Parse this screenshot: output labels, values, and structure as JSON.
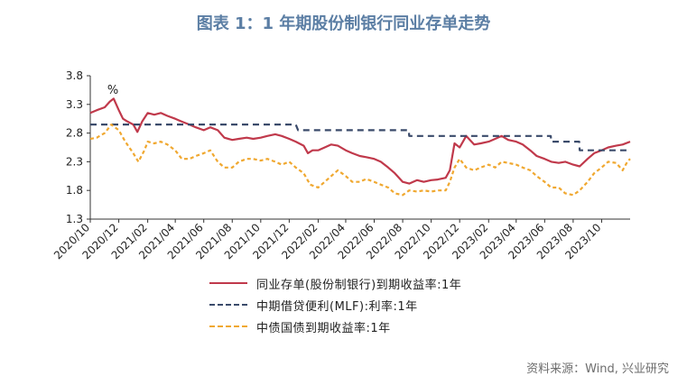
{
  "title": "图表 1：1 年期股份制银行同业存单走势",
  "source": "资料来源：Wind, 兴业研究",
  "colors": {
    "title": "#5b7ea4",
    "ncd": "#c0394b",
    "mlf": "#3b4b6b",
    "gov": "#f0a830"
  },
  "chart_data": {
    "type": "line",
    "unit_label": "%",
    "ylim": [
      1.3,
      3.8
    ],
    "yticks": [
      "3.8",
      "3.3",
      "2.8",
      "2.3",
      "1.8",
      "1.3"
    ],
    "xlim": [
      "2020-10",
      "2023-12"
    ],
    "xticks": [
      "2020/10",
      "2020/12",
      "2021/02",
      "2021/04",
      "2021/06",
      "2021/08",
      "2021/10",
      "2021/12",
      "2022/02",
      "2022/04",
      "2022/06",
      "2022/08",
      "2022/10",
      "2022/12",
      "2023/02",
      "2023/04",
      "2023/06",
      "2023/08",
      "2023/10"
    ],
    "grid": false,
    "legend_position": "bottom",
    "series": [
      {
        "name": "同业存单(股份制银行)到期收益率:1年",
        "color": "#c0394b",
        "style": "solid",
        "points": [
          [
            "2020-10-01",
            3.15
          ],
          [
            "2020-10-15",
            3.2
          ],
          [
            "2020-11-01",
            3.25
          ],
          [
            "2020-11-12",
            3.35
          ],
          [
            "2020-11-20",
            3.4
          ],
          [
            "2020-12-01",
            3.2
          ],
          [
            "2020-12-10",
            3.05
          ],
          [
            "2020-12-20",
            3.0
          ],
          [
            "2021-01-01",
            2.95
          ],
          [
            "2021-01-10",
            2.82
          ],
          [
            "2021-01-20",
            3.0
          ],
          [
            "2021-02-01",
            3.15
          ],
          [
            "2021-02-15",
            3.12
          ],
          [
            "2021-03-01",
            3.15
          ],
          [
            "2021-03-15",
            3.1
          ],
          [
            "2021-04-01",
            3.05
          ],
          [
            "2021-04-15",
            3.0
          ],
          [
            "2021-05-01",
            2.95
          ],
          [
            "2021-05-15",
            2.9
          ],
          [
            "2021-06-01",
            2.85
          ],
          [
            "2021-06-15",
            2.9
          ],
          [
            "2021-07-01",
            2.85
          ],
          [
            "2021-07-15",
            2.72
          ],
          [
            "2021-08-01",
            2.68
          ],
          [
            "2021-08-15",
            2.7
          ],
          [
            "2021-09-01",
            2.72
          ],
          [
            "2021-09-15",
            2.7
          ],
          [
            "2021-10-01",
            2.72
          ],
          [
            "2021-10-15",
            2.75
          ],
          [
            "2021-11-01",
            2.78
          ],
          [
            "2021-11-15",
            2.75
          ],
          [
            "2021-12-01",
            2.7
          ],
          [
            "2021-12-15",
            2.65
          ],
          [
            "2022-01-01",
            2.58
          ],
          [
            "2022-01-10",
            2.45
          ],
          [
            "2022-01-20",
            2.5
          ],
          [
            "2022-02-01",
            2.5
          ],
          [
            "2022-02-15",
            2.55
          ],
          [
            "2022-03-01",
            2.6
          ],
          [
            "2022-03-15",
            2.58
          ],
          [
            "2022-04-01",
            2.5
          ],
          [
            "2022-04-15",
            2.45
          ],
          [
            "2022-05-01",
            2.4
          ],
          [
            "2022-05-15",
            2.38
          ],
          [
            "2022-06-01",
            2.35
          ],
          [
            "2022-06-15",
            2.3
          ],
          [
            "2022-07-01",
            2.2
          ],
          [
            "2022-07-15",
            2.1
          ],
          [
            "2022-08-01",
            1.95
          ],
          [
            "2022-08-15",
            1.92
          ],
          [
            "2022-09-01",
            1.98
          ],
          [
            "2022-09-15",
            1.95
          ],
          [
            "2022-10-01",
            1.98
          ],
          [
            "2022-10-15",
            1.99
          ],
          [
            "2022-11-01",
            2.02
          ],
          [
            "2022-11-10",
            2.15
          ],
          [
            "2022-11-20",
            2.62
          ],
          [
            "2022-12-01",
            2.55
          ],
          [
            "2022-12-15",
            2.75
          ],
          [
            "2023-01-01",
            2.6
          ],
          [
            "2023-01-15",
            2.62
          ],
          [
            "2023-02-01",
            2.65
          ],
          [
            "2023-02-15",
            2.7
          ],
          [
            "2023-03-01",
            2.75
          ],
          [
            "2023-03-15",
            2.68
          ],
          [
            "2023-04-01",
            2.65
          ],
          [
            "2023-04-15",
            2.6
          ],
          [
            "2023-05-01",
            2.5
          ],
          [
            "2023-05-15",
            2.4
          ],
          [
            "2023-06-01",
            2.35
          ],
          [
            "2023-06-15",
            2.3
          ],
          [
            "2023-07-01",
            2.28
          ],
          [
            "2023-07-15",
            2.3
          ],
          [
            "2023-08-01",
            2.25
          ],
          [
            "2023-08-15",
            2.22
          ],
          [
            "2023-09-01",
            2.35
          ],
          [
            "2023-09-15",
            2.45
          ],
          [
            "2023-10-01",
            2.5
          ],
          [
            "2023-10-15",
            2.55
          ],
          [
            "2023-11-01",
            2.58
          ],
          [
            "2023-11-15",
            2.6
          ],
          [
            "2023-12-01",
            2.65
          ]
        ]
      },
      {
        "name": "中期借贷便利(MLF):利率:1年",
        "color": "#3b4b6b",
        "style": "dashed",
        "points": [
          [
            "2020-10-01",
            2.95
          ],
          [
            "2021-12-15",
            2.95
          ],
          [
            "2021-12-20",
            2.85
          ],
          [
            "2022-01-15",
            2.85
          ],
          [
            "2022-01-17",
            2.85
          ],
          [
            "2022-08-14",
            2.85
          ],
          [
            "2022-08-15",
            2.75
          ],
          [
            "2023-06-14",
            2.75
          ],
          [
            "2023-06-15",
            2.65
          ],
          [
            "2023-08-14",
            2.65
          ],
          [
            "2023-08-15",
            2.5
          ],
          [
            "2023-12-01",
            2.5
          ]
        ]
      },
      {
        "name": "中债国债到期收益率:1年",
        "color": "#f0a830",
        "style": "dashed",
        "points": [
          [
            "2020-10-01",
            2.7
          ],
          [
            "2020-10-15",
            2.72
          ],
          [
            "2020-11-01",
            2.8
          ],
          [
            "2020-11-15",
            2.95
          ],
          [
            "2020-12-01",
            2.85
          ],
          [
            "2020-12-15",
            2.65
          ],
          [
            "2021-01-01",
            2.45
          ],
          [
            "2021-01-12",
            2.3
          ],
          [
            "2021-01-25",
            2.5
          ],
          [
            "2021-02-01",
            2.65
          ],
          [
            "2021-02-15",
            2.62
          ],
          [
            "2021-03-01",
            2.65
          ],
          [
            "2021-03-15",
            2.6
          ],
          [
            "2021-04-01",
            2.5
          ],
          [
            "2021-04-15",
            2.35
          ],
          [
            "2021-05-01",
            2.35
          ],
          [
            "2021-05-15",
            2.4
          ],
          [
            "2021-06-01",
            2.45
          ],
          [
            "2021-06-15",
            2.5
          ],
          [
            "2021-07-01",
            2.3
          ],
          [
            "2021-07-15",
            2.2
          ],
          [
            "2021-08-01",
            2.2
          ],
          [
            "2021-08-15",
            2.3
          ],
          [
            "2021-09-01",
            2.35
          ],
          [
            "2021-09-15",
            2.35
          ],
          [
            "2021-10-01",
            2.32
          ],
          [
            "2021-10-15",
            2.35
          ],
          [
            "2021-11-01",
            2.3
          ],
          [
            "2021-11-15",
            2.25
          ],
          [
            "2021-12-01",
            2.3
          ],
          [
            "2021-12-15",
            2.2
          ],
          [
            "2022-01-01",
            2.1
          ],
          [
            "2022-01-15",
            1.9
          ],
          [
            "2022-02-01",
            1.85
          ],
          [
            "2022-02-15",
            1.95
          ],
          [
            "2022-03-01",
            2.05
          ],
          [
            "2022-03-15",
            2.15
          ],
          [
            "2022-04-01",
            2.05
          ],
          [
            "2022-04-15",
            1.95
          ],
          [
            "2022-05-01",
            1.95
          ],
          [
            "2022-05-15",
            2.0
          ],
          [
            "2022-06-01",
            1.95
          ],
          [
            "2022-06-15",
            1.9
          ],
          [
            "2022-07-01",
            1.85
          ],
          [
            "2022-07-15",
            1.75
          ],
          [
            "2022-08-01",
            1.72
          ],
          [
            "2022-08-15",
            1.8
          ],
          [
            "2022-09-01",
            1.78
          ],
          [
            "2022-09-15",
            1.8
          ],
          [
            "2022-10-01",
            1.78
          ],
          [
            "2022-10-15",
            1.8
          ],
          [
            "2022-11-01",
            1.8
          ],
          [
            "2022-11-10",
            1.95
          ],
          [
            "2022-11-20",
            2.2
          ],
          [
            "2022-12-01",
            2.35
          ],
          [
            "2022-12-15",
            2.2
          ],
          [
            "2023-01-01",
            2.15
          ],
          [
            "2023-01-15",
            2.2
          ],
          [
            "2023-02-01",
            2.25
          ],
          [
            "2023-02-15",
            2.2
          ],
          [
            "2023-03-01",
            2.3
          ],
          [
            "2023-03-15",
            2.28
          ],
          [
            "2023-04-01",
            2.25
          ],
          [
            "2023-04-15",
            2.2
          ],
          [
            "2023-05-01",
            2.15
          ],
          [
            "2023-05-15",
            2.05
          ],
          [
            "2023-06-01",
            1.95
          ],
          [
            "2023-06-15",
            1.85
          ],
          [
            "2023-07-01",
            1.85
          ],
          [
            "2023-07-15",
            1.75
          ],
          [
            "2023-08-01",
            1.72
          ],
          [
            "2023-08-15",
            1.8
          ],
          [
            "2023-09-01",
            1.95
          ],
          [
            "2023-09-15",
            2.1
          ],
          [
            "2023-10-01",
            2.2
          ],
          [
            "2023-10-15",
            2.3
          ],
          [
            "2023-11-01",
            2.28
          ],
          [
            "2023-11-15",
            2.15
          ],
          [
            "2023-11-25",
            2.3
          ],
          [
            "2023-12-01",
            2.35
          ]
        ]
      }
    ]
  }
}
